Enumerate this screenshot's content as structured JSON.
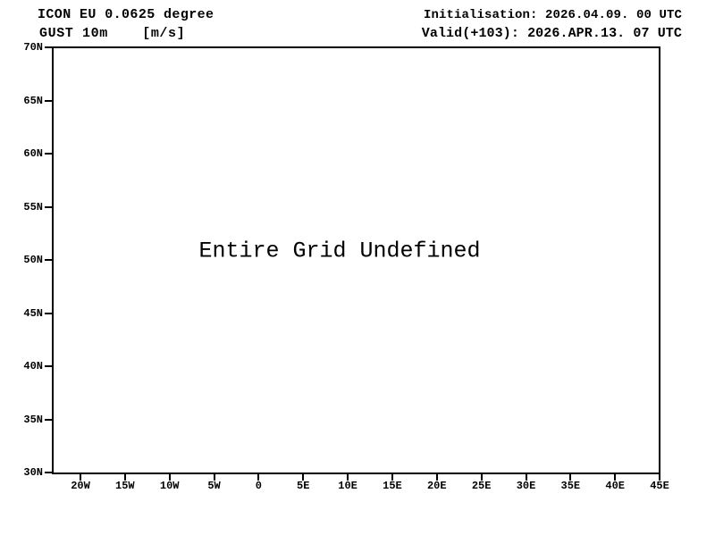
{
  "page": {
    "background": "#ffffff",
    "foreground": "#000000"
  },
  "header": {
    "left": {
      "line1": "ICON EU 0.0625 degree",
      "line2": "GUST 10m    [m/s]"
    },
    "right": {
      "line1": "Initialisation: 2026.04.09. 00 UTC",
      "line2": "Valid(+103): 2026.APR.13. 07 UTC"
    }
  },
  "plot": {
    "message": "Entire Grid Undefined",
    "y_axis": {
      "ticks": [
        "70N",
        "65N",
        "60N",
        "55N",
        "50N",
        "45N",
        "40N",
        "35N",
        "30N"
      ]
    },
    "x_axis": {
      "ticks": [
        "20W",
        "15W",
        "10W",
        "5W",
        "0",
        "5E",
        "10E",
        "15E",
        "20E",
        "25E",
        "30E",
        "35E",
        "40E",
        "45E"
      ]
    }
  },
  "chart_data": {
    "type": "heatmap",
    "title": "ICON EU 0.0625 degree  GUST 10m [m/s]",
    "annotations": [
      "Entire Grid Undefined"
    ],
    "right_annotations": [
      "Initialisation: 2026.04.09. 00 UTC",
      "Valid(+103): 2026.APR.13. 07 UTC"
    ],
    "x_tick_labels": [
      "20W",
      "15W",
      "10W",
      "5W",
      "0",
      "5E",
      "10E",
      "15E",
      "20E",
      "25E",
      "30E",
      "35E",
      "40E",
      "45E"
    ],
    "y_tick_labels": [
      "70N",
      "65N",
      "60N",
      "55N",
      "50N",
      "45N",
      "40N",
      "35N",
      "30N"
    ],
    "xlabel": "",
    "ylabel": "",
    "xlim_degrees_east": [
      -23.2,
      45
    ],
    "ylim_degrees_north": [
      30,
      70
    ],
    "grid": false,
    "legend_position": "none",
    "values": []
  }
}
